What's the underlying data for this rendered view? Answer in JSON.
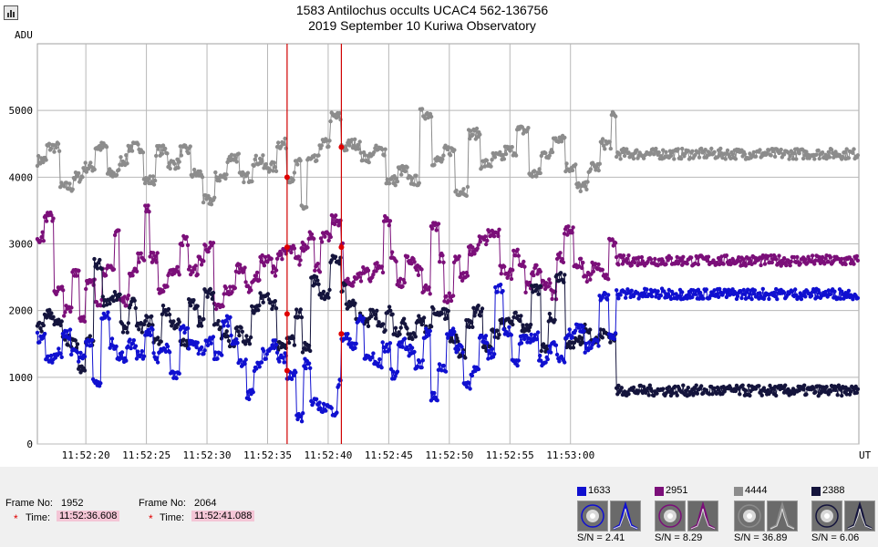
{
  "window": {
    "title_line1": "1583 Antilochus occults UCAC4 562-136756",
    "title_line2": "2019 September 10 Kuriwa Observatory",
    "menu_icon": "chart-menu-icon"
  },
  "chart_data": {
    "type": "line",
    "ylabel": "ADU",
    "xlabel": "UT",
    "yticks": [
      0,
      1000,
      2000,
      3000,
      4000,
      5000
    ],
    "ylim": [
      0,
      6000
    ],
    "xlim_seconds": [
      16.0,
      83.8
    ],
    "xtick_seconds": [
      20,
      25,
      30,
      35,
      40,
      45,
      50,
      55,
      60
    ],
    "xticks": [
      "11:52:20",
      "11:52:25",
      "11:52:30",
      "11:52:35",
      "11:52:40",
      "11:52:45",
      "11:52:50",
      "11:52:55",
      "11:53:00"
    ],
    "grid": true,
    "cursor_times": [
      "11:52:36.608",
      "11:52:41.088"
    ],
    "cursor_seconds": [
      36.61,
      41.09
    ],
    "series": [
      {
        "name": "4444",
        "color": "#8c8c8c",
        "levels": [
          [
            16.0,
            4250
          ],
          [
            16.8,
            4450
          ],
          [
            17.9,
            3850
          ],
          [
            19.0,
            4000
          ],
          [
            19.8,
            4150
          ],
          [
            20.8,
            4450
          ],
          [
            21.8,
            4050
          ],
          [
            22.8,
            4250
          ],
          [
            23.5,
            4450
          ],
          [
            24.8,
            3950
          ],
          [
            25.8,
            4400
          ],
          [
            26.8,
            4200
          ],
          [
            27.8,
            4400
          ],
          [
            28.7,
            4050
          ],
          [
            29.7,
            3650
          ],
          [
            30.7,
            4000
          ],
          [
            31.7,
            4300
          ],
          [
            32.7,
            4000
          ],
          [
            33.8,
            4250
          ],
          [
            34.7,
            4150
          ],
          [
            35.8,
            4500
          ],
          [
            36.6,
            4000
          ],
          [
            37.3,
            4200
          ],
          [
            37.8,
            3550
          ],
          [
            38.3,
            4250
          ],
          [
            39.3,
            4500
          ],
          [
            40.2,
            4900
          ],
          [
            41.1,
            4450
          ],
          [
            41.7,
            4500
          ],
          [
            42.7,
            4300
          ],
          [
            43.7,
            4400
          ],
          [
            44.8,
            3950
          ],
          [
            45.8,
            4100
          ],
          [
            46.6,
            3950
          ],
          [
            47.6,
            4950
          ],
          [
            48.6,
            4250
          ],
          [
            49.6,
            4400
          ],
          [
            50.5,
            3800
          ],
          [
            51.6,
            4650
          ],
          [
            52.6,
            4200
          ],
          [
            53.6,
            4300
          ],
          [
            54.6,
            4400
          ],
          [
            55.6,
            4700
          ],
          [
            56.6,
            4050
          ],
          [
            57.6,
            4350
          ],
          [
            58.6,
            4600
          ],
          [
            59.6,
            4150
          ],
          [
            60.5,
            3850
          ],
          [
            61.5,
            4150
          ],
          [
            62.5,
            4500
          ],
          [
            63.4,
            4900
          ],
          [
            63.8,
            4350
          ]
        ],
        "markers": [
          [
            36.61,
            4000
          ],
          [
            41.09,
            4450
          ]
        ]
      },
      {
        "name": "2951",
        "color": "#7b0f79",
        "levels": [
          [
            16.0,
            3100
          ],
          [
            16.6,
            3400
          ],
          [
            17.4,
            2300
          ],
          [
            18.2,
            2000
          ],
          [
            18.9,
            2600
          ],
          [
            19.5,
            1900
          ],
          [
            20.0,
            2400
          ],
          [
            20.8,
            2150
          ],
          [
            21.4,
            2600
          ],
          [
            22.4,
            3200
          ],
          [
            22.8,
            2150
          ],
          [
            23.6,
            2600
          ],
          [
            24.3,
            2800
          ],
          [
            24.9,
            3550
          ],
          [
            25.3,
            2800
          ],
          [
            26.0,
            2300
          ],
          [
            26.8,
            2600
          ],
          [
            27.8,
            3050
          ],
          [
            28.5,
            2600
          ],
          [
            29.3,
            2750
          ],
          [
            29.8,
            2950
          ],
          [
            30.6,
            2050
          ],
          [
            31.4,
            2300
          ],
          [
            32.4,
            2650
          ],
          [
            33.2,
            2350
          ],
          [
            33.8,
            2500
          ],
          [
            34.4,
            2750
          ],
          [
            35.4,
            2600
          ],
          [
            35.8,
            2850
          ],
          [
            36.6,
            2900
          ],
          [
            37.3,
            2750
          ],
          [
            37.8,
            2950
          ],
          [
            38.4,
            3150
          ],
          [
            38.9,
            2650
          ],
          [
            39.4,
            3100
          ],
          [
            40.3,
            3350
          ],
          [
            41.1,
            2950
          ],
          [
            41.3,
            2400
          ],
          [
            42.1,
            2500
          ],
          [
            42.8,
            2600
          ],
          [
            43.4,
            2500
          ],
          [
            43.8,
            2650
          ],
          [
            44.6,
            3350
          ],
          [
            45.2,
            2800
          ],
          [
            45.7,
            2400
          ],
          [
            46.4,
            2750
          ],
          [
            47.2,
            2600
          ],
          [
            47.8,
            2300
          ],
          [
            48.5,
            3250
          ],
          [
            49.2,
            2800
          ],
          [
            49.6,
            2200
          ],
          [
            50.4,
            2800
          ],
          [
            50.9,
            2500
          ],
          [
            51.6,
            2900
          ],
          [
            52.4,
            3050
          ],
          [
            53.2,
            3150
          ],
          [
            54.2,
            2600
          ],
          [
            54.8,
            2550
          ],
          [
            55.3,
            2900
          ],
          [
            55.8,
            2700
          ],
          [
            56.3,
            2350
          ],
          [
            56.8,
            2600
          ],
          [
            57.6,
            2400
          ],
          [
            58.4,
            2250
          ],
          [
            58.9,
            2800
          ],
          [
            59.5,
            3200
          ],
          [
            60.3,
            2700
          ],
          [
            61.1,
            2500
          ],
          [
            61.8,
            2650
          ],
          [
            62.4,
            2550
          ],
          [
            63.2,
            3000
          ],
          [
            63.8,
            2750
          ]
        ],
        "markers": [
          [
            36.61,
            2950
          ],
          [
            41.09,
            2950
          ]
        ]
      },
      {
        "name": "2388",
        "color": "#14143c",
        "levels": [
          [
            16.0,
            1750
          ],
          [
            16.6,
            1950
          ],
          [
            17.4,
            1800
          ],
          [
            18.1,
            1550
          ],
          [
            18.8,
            1500
          ],
          [
            19.4,
            1100
          ],
          [
            20.0,
            1550
          ],
          [
            20.7,
            2700
          ],
          [
            21.4,
            2150
          ],
          [
            22.3,
            2200
          ],
          [
            22.9,
            1750
          ],
          [
            23.6,
            2100
          ],
          [
            24.2,
            1750
          ],
          [
            24.9,
            1850
          ],
          [
            25.6,
            1550
          ],
          [
            26.3,
            2000
          ],
          [
            27.0,
            1800
          ],
          [
            27.8,
            1500
          ],
          [
            28.5,
            2100
          ],
          [
            29.3,
            1850
          ],
          [
            29.8,
            2250
          ],
          [
            30.6,
            1800
          ],
          [
            31.2,
            1650
          ],
          [
            31.8,
            1500
          ],
          [
            32.4,
            1700
          ],
          [
            33.0,
            1550
          ],
          [
            33.7,
            2000
          ],
          [
            34.4,
            2200
          ],
          [
            35.2,
            2100
          ],
          [
            35.8,
            1450
          ],
          [
            36.6,
            1550
          ],
          [
            37.3,
            1950
          ],
          [
            37.9,
            1450
          ],
          [
            38.6,
            2450
          ],
          [
            39.3,
            2250
          ],
          [
            40.2,
            2750
          ],
          [
            41.1,
            2350
          ],
          [
            41.5,
            2100
          ],
          [
            42.3,
            1900
          ],
          [
            42.9,
            1800
          ],
          [
            43.4,
            1950
          ],
          [
            44.1,
            1750
          ],
          [
            44.8,
            2000
          ],
          [
            45.4,
            1700
          ],
          [
            46.0,
            1800
          ],
          [
            46.6,
            1650
          ],
          [
            47.3,
            1850
          ],
          [
            48.0,
            1700
          ],
          [
            48.6,
            2000
          ],
          [
            49.3,
            1950
          ],
          [
            50.0,
            1600
          ],
          [
            50.8,
            1350
          ],
          [
            51.4,
            1800
          ],
          [
            52.0,
            2000
          ],
          [
            52.8,
            1450
          ],
          [
            53.5,
            1650
          ],
          [
            54.2,
            1800
          ],
          [
            54.8,
            1850
          ],
          [
            55.4,
            1900
          ],
          [
            56.0,
            1750
          ],
          [
            56.8,
            2300
          ],
          [
            57.6,
            1450
          ],
          [
            58.2,
            1900
          ],
          [
            58.8,
            2500
          ],
          [
            59.6,
            1500
          ],
          [
            60.4,
            1550
          ],
          [
            61.1,
            1750
          ],
          [
            61.7,
            1550
          ],
          [
            62.4,
            1650
          ],
          [
            63.2,
            1600
          ],
          [
            63.8,
            800
          ]
        ],
        "markers": [
          [
            36.61,
            1950
          ],
          [
            41.09,
            1650
          ]
        ]
      },
      {
        "name": "1633",
        "color": "#1010d0",
        "levels": [
          [
            16.0,
            1600
          ],
          [
            16.7,
            1300
          ],
          [
            17.4,
            1350
          ],
          [
            18.1,
            1650
          ],
          [
            18.8,
            1400
          ],
          [
            19.4,
            1300
          ],
          [
            20.0,
            1550
          ],
          [
            20.6,
            900
          ],
          [
            21.3,
            1900
          ],
          [
            22.0,
            1500
          ],
          [
            22.6,
            1300
          ],
          [
            23.4,
            1500
          ],
          [
            24.2,
            1350
          ],
          [
            24.9,
            1700
          ],
          [
            25.6,
            1300
          ],
          [
            26.2,
            1450
          ],
          [
            27.0,
            1050
          ],
          [
            27.8,
            1700
          ],
          [
            28.5,
            1500
          ],
          [
            29.3,
            1400
          ],
          [
            29.9,
            1550
          ],
          [
            30.6,
            1300
          ],
          [
            31.3,
            1850
          ],
          [
            32.0,
            1550
          ],
          [
            32.6,
            1200
          ],
          [
            33.3,
            750
          ],
          [
            33.9,
            1150
          ],
          [
            34.6,
            1350
          ],
          [
            35.3,
            1500
          ],
          [
            35.8,
            1300
          ],
          [
            36.6,
            1050
          ],
          [
            37.4,
            400
          ],
          [
            38.0,
            1200
          ],
          [
            38.6,
            600
          ],
          [
            39.3,
            550
          ],
          [
            40.2,
            500
          ],
          [
            40.8,
            900
          ],
          [
            41.1,
            1600
          ],
          [
            41.7,
            1500
          ],
          [
            42.4,
            1850
          ],
          [
            43.0,
            1300
          ],
          [
            43.8,
            1200
          ],
          [
            44.5,
            1450
          ],
          [
            45.2,
            1050
          ],
          [
            45.8,
            1500
          ],
          [
            46.5,
            1400
          ],
          [
            47.2,
            1200
          ],
          [
            47.9,
            1650
          ],
          [
            48.5,
            700
          ],
          [
            49.1,
            1150
          ],
          [
            49.8,
            1650
          ],
          [
            50.5,
            1450
          ],
          [
            51.2,
            900
          ],
          [
            51.8,
            1100
          ],
          [
            52.5,
            1550
          ],
          [
            53.2,
            1350
          ],
          [
            53.8,
            2350
          ],
          [
            54.5,
            1700
          ],
          [
            55.2,
            1200
          ],
          [
            55.8,
            1550
          ],
          [
            56.6,
            1600
          ],
          [
            57.4,
            1250
          ],
          [
            58.2,
            1450
          ],
          [
            58.9,
            1300
          ],
          [
            59.6,
            1650
          ],
          [
            60.4,
            1750
          ],
          [
            61.2,
            1450
          ],
          [
            61.8,
            1500
          ],
          [
            62.4,
            2200
          ],
          [
            63.2,
            1650
          ],
          [
            63.8,
            2250
          ]
        ],
        "markers": [
          [
            36.61,
            1100
          ],
          [
            41.09,
            1650
          ]
        ]
      }
    ]
  },
  "footer": {
    "frame1": {
      "label": "Frame No:",
      "value": "1952",
      "time_label": "Time:",
      "time": "11:52:36.608",
      "star": "*"
    },
    "frame2": {
      "label": "Frame No:",
      "value": "2064",
      "time_label": "Time:",
      "time": "11:52:41.088",
      "star": "*"
    },
    "stars": [
      {
        "id": "1633",
        "color": "#1010d0",
        "snr": "S/N =  2.41",
        "aperture_color": "#1010d0"
      },
      {
        "id": "2951",
        "color": "#7b0f79",
        "snr": "S/N =  8.29",
        "aperture_color": "#7b0f79"
      },
      {
        "id": "4444",
        "color": "#8c8c8c",
        "snr": "S/N =  36.89",
        "aperture_color": "#8c8c8c"
      },
      {
        "id": "2388",
        "color": "#14143c",
        "snr": "S/N =  6.06",
        "aperture_color": "#14143c"
      }
    ]
  }
}
